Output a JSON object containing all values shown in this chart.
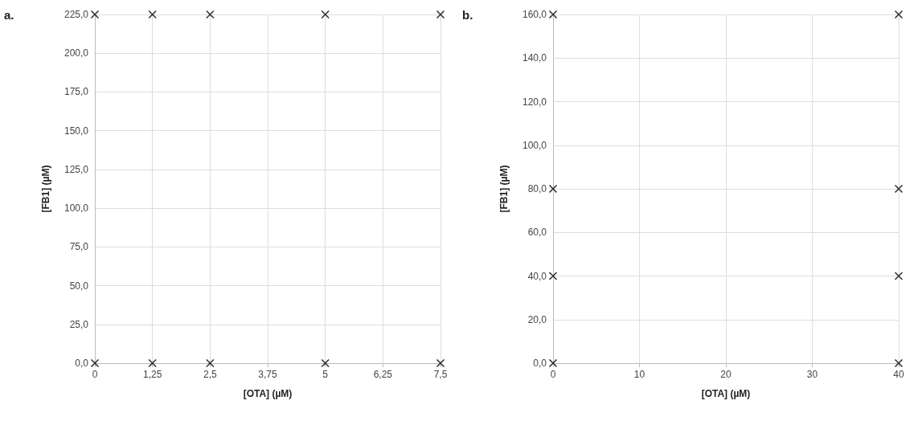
{
  "chart_data": [
    {
      "type": "scatter",
      "title": "a.",
      "xlabel": "[OTA] (µM)",
      "ylabel": "[FB1] (µM)",
      "marker": "cross",
      "grid": true,
      "xlim": [
        0,
        7.5
      ],
      "xticks": [
        0,
        {
          "value": 1.25,
          "label": "1,25"
        },
        {
          "value": 2.5,
          "label": "2,5"
        },
        {
          "value": 3.75,
          "label": "3,75"
        },
        5,
        {
          "value": 6.25,
          "label": "6,25"
        },
        {
          "value": 7.5,
          "label": "7,5"
        }
      ],
      "ylim": [
        0,
        225
      ],
      "yticks": [
        {
          "value": 0,
          "label": "0,0"
        },
        {
          "value": 25,
          "label": "25,0"
        },
        {
          "value": 50,
          "label": "50,0"
        },
        {
          "value": 75,
          "label": "75,0"
        },
        {
          "value": 100,
          "label": "100,0"
        },
        {
          "value": 125,
          "label": "125,0"
        },
        {
          "value": 150,
          "label": "150,0"
        },
        {
          "value": 175,
          "label": "175,0"
        },
        {
          "value": 200,
          "label": "200,0"
        },
        {
          "value": 225,
          "label": "225,0"
        }
      ],
      "series": [
        {
          "color": "#000000",
          "x": [
            0,
            1.25,
            2.5,
            5,
            7.5,
            0,
            1.25,
            2.5,
            5,
            7.5
          ],
          "values": [
            0,
            0,
            0,
            0,
            0,
            225,
            225,
            225,
            225,
            225
          ]
        }
      ]
    },
    {
      "type": "scatter",
      "title": "b.",
      "xlabel": "[OTA] (µM)",
      "ylabel": "[FB1] (µM)",
      "marker": "cross",
      "grid": true,
      "xlim": [
        0,
        40
      ],
      "xticks": [
        0,
        10,
        20,
        30,
        40
      ],
      "ylim": [
        0,
        160
      ],
      "yticks": [
        {
          "value": 0,
          "label": "0,0"
        },
        {
          "value": 20,
          "label": "20,0"
        },
        {
          "value": 40,
          "label": "40,0"
        },
        {
          "value": 60,
          "label": "60,0"
        },
        {
          "value": 80,
          "label": "80,0"
        },
        {
          "value": 100,
          "label": "100,0"
        },
        {
          "value": 120,
          "label": "120,0"
        },
        {
          "value": 140,
          "label": "140,0"
        },
        {
          "value": 160,
          "label": "160,0"
        }
      ],
      "series": [
        {
          "color": "#000000",
          "x": [
            0,
            0,
            0,
            0,
            40,
            40,
            40,
            40
          ],
          "values": [
            0,
            40,
            80,
            160,
            0,
            40,
            80,
            160
          ]
        }
      ]
    }
  ]
}
